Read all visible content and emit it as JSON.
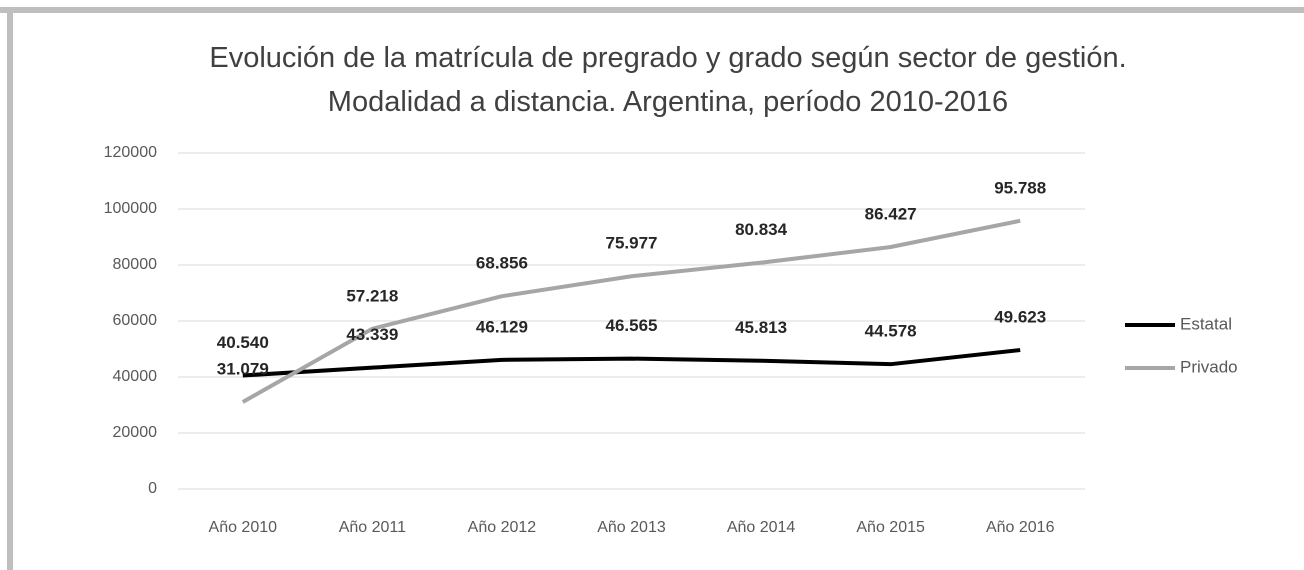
{
  "chart_data": {
    "type": "line",
    "title": "Evolución de la matrícula de pregrado y grado según sector de gestión. Modalidad a distancia. Argentina, período 2010-2016",
    "categories": [
      "Año 2010",
      "Año 2011",
      "Año 2012",
      "Año 2013",
      "Año 2014",
      "Año 2015",
      "Año 2016"
    ],
    "series": [
      {
        "name": "Estatal",
        "color": "#000000",
        "values": [
          40540,
          43339,
          46129,
          46565,
          45813,
          44578,
          49623
        ],
        "value_labels": [
          "40.540",
          "43.339",
          "46.129",
          "46.565",
          "45.813",
          "44.578",
          "49.623"
        ]
      },
      {
        "name": "Privado",
        "color": "#a6a6a6",
        "values": [
          31079,
          57218,
          68856,
          75977,
          80834,
          86427,
          95788
        ],
        "value_labels": [
          "31.079",
          "57.218",
          "68.856",
          "75.977",
          "80.834",
          "86.427",
          "95.788"
        ]
      }
    ],
    "ylim": [
      0,
      120000
    ],
    "yticks": [
      0,
      20000,
      40000,
      60000,
      80000,
      100000,
      120000
    ],
    "grid": true,
    "legend": "right"
  }
}
